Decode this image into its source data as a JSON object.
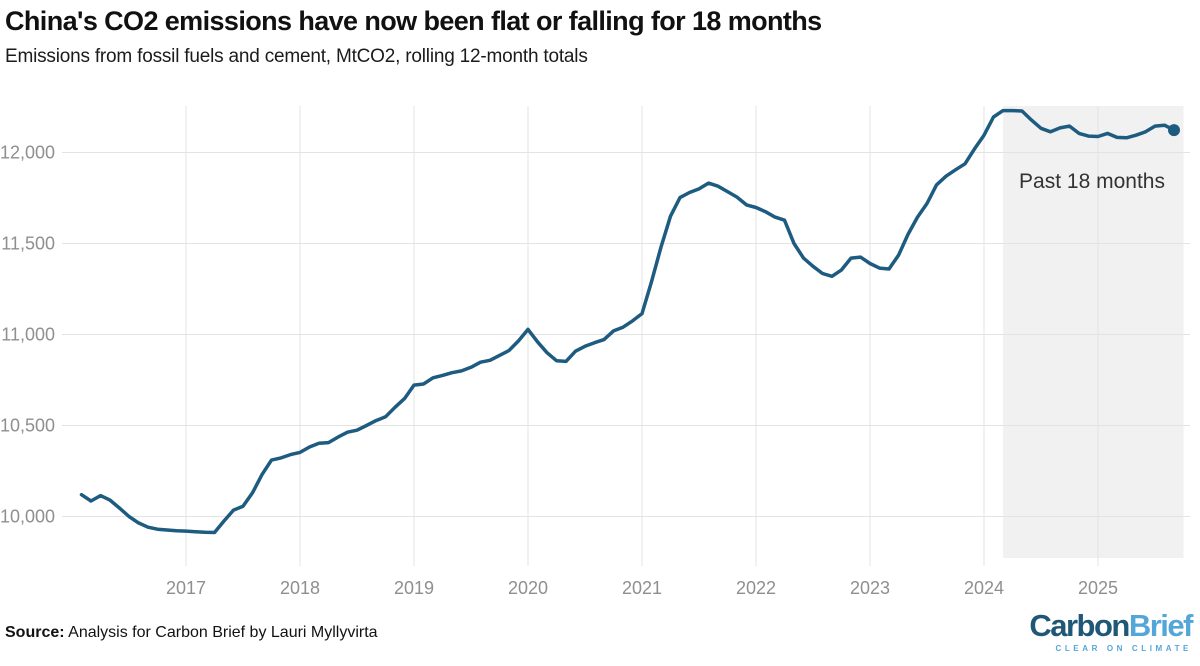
{
  "header": {
    "title": "China's CO2 emissions have now been flat or falling for 18 months",
    "subtitle": "Emissions from fossil fuels and cement, MtCO2, rolling 12-month totals"
  },
  "footer": {
    "source_label": "Source:",
    "source_text": " Analysis for Carbon Brief by Lauri Myllyvirta",
    "logo_part1": "Carbon",
    "logo_part2": "Brief",
    "logo_tagline": "CLEAR ON CLIMATE",
    "logo_color_dark": "#1f5877",
    "logo_color_light": "#55a6d8"
  },
  "chart_data": {
    "type": "line",
    "title": "China's CO2 emissions have now been flat or falling for 18 months",
    "subtitle": "Emissions from fossil fuels and cement, MtCO2, rolling 12-month totals",
    "unit": "MtCO2",
    "ylim": [
      9770,
      12260
    ],
    "grid": true,
    "legend_position": "none",
    "line_color": "#1e5b80",
    "grid_color": "#e3e3e3",
    "highlight_fill": "#f1f1f1",
    "label_color": "#8f8f8f",
    "annotation_color": "#333333",
    "y_ticks": [
      {
        "label": "10,000",
        "value": 10000
      },
      {
        "label": "10,500",
        "value": 10500
      },
      {
        "label": "11,000",
        "value": 11000
      },
      {
        "label": "11,500",
        "value": 11500
      },
      {
        "label": "12,000",
        "value": 12000
      }
    ],
    "x_ticks": [
      {
        "label": "2017",
        "year": 2017
      },
      {
        "label": "2018",
        "year": 2018
      },
      {
        "label": "2019",
        "year": 2019
      },
      {
        "label": "2020",
        "year": 2020
      },
      {
        "label": "2021",
        "year": 2021
      },
      {
        "label": "2022",
        "year": 2022
      },
      {
        "label": "2023",
        "year": 2023
      },
      {
        "label": "2024",
        "year": 2024
      },
      {
        "label": "2025",
        "year": 2025
      }
    ],
    "highlight": {
      "label": "Past 18 months",
      "start": "2024-03",
      "end": "2025-10"
    },
    "series": [
      {
        "name": "Rolling 12-month CO2 emissions",
        "start": "2016-02",
        "end_marker": true,
        "monthly_values": [
          10120,
          10085,
          10115,
          10090,
          10046,
          10000,
          9965,
          9941,
          9930,
          9926,
          9922,
          9920,
          9916,
          9913,
          9912,
          9975,
          10035,
          10056,
          10130,
          10230,
          10310,
          10322,
          10340,
          10352,
          10382,
          10403,
          10406,
          10436,
          10463,
          10474,
          10500,
          10527,
          10548,
          10600,
          10648,
          10722,
          10728,
          10762,
          10775,
          10790,
          10800,
          10820,
          10848,
          10858,
          10885,
          10912,
          10965,
          11028,
          10960,
          10900,
          10856,
          10852,
          10908,
          10935,
          10955,
          10972,
          11020,
          11040,
          11075,
          11115,
          11290,
          11480,
          11650,
          11752,
          11780,
          11800,
          11832,
          11815,
          11785,
          11755,
          11712,
          11698,
          11675,
          11645,
          11628,
          11500,
          11420,
          11375,
          11335,
          11320,
          11355,
          11420,
          11425,
          11390,
          11365,
          11360,
          11435,
          11550,
          11645,
          11720,
          11822,
          11870,
          11905,
          11938,
          12020,
          12095,
          12195,
          12230,
          12230,
          12228,
          12178,
          12133,
          12114,
          12135,
          12145,
          12105,
          12090,
          12088,
          12105,
          12083,
          12081,
          12095,
          12114,
          12145,
          12150,
          12123
        ]
      }
    ]
  }
}
